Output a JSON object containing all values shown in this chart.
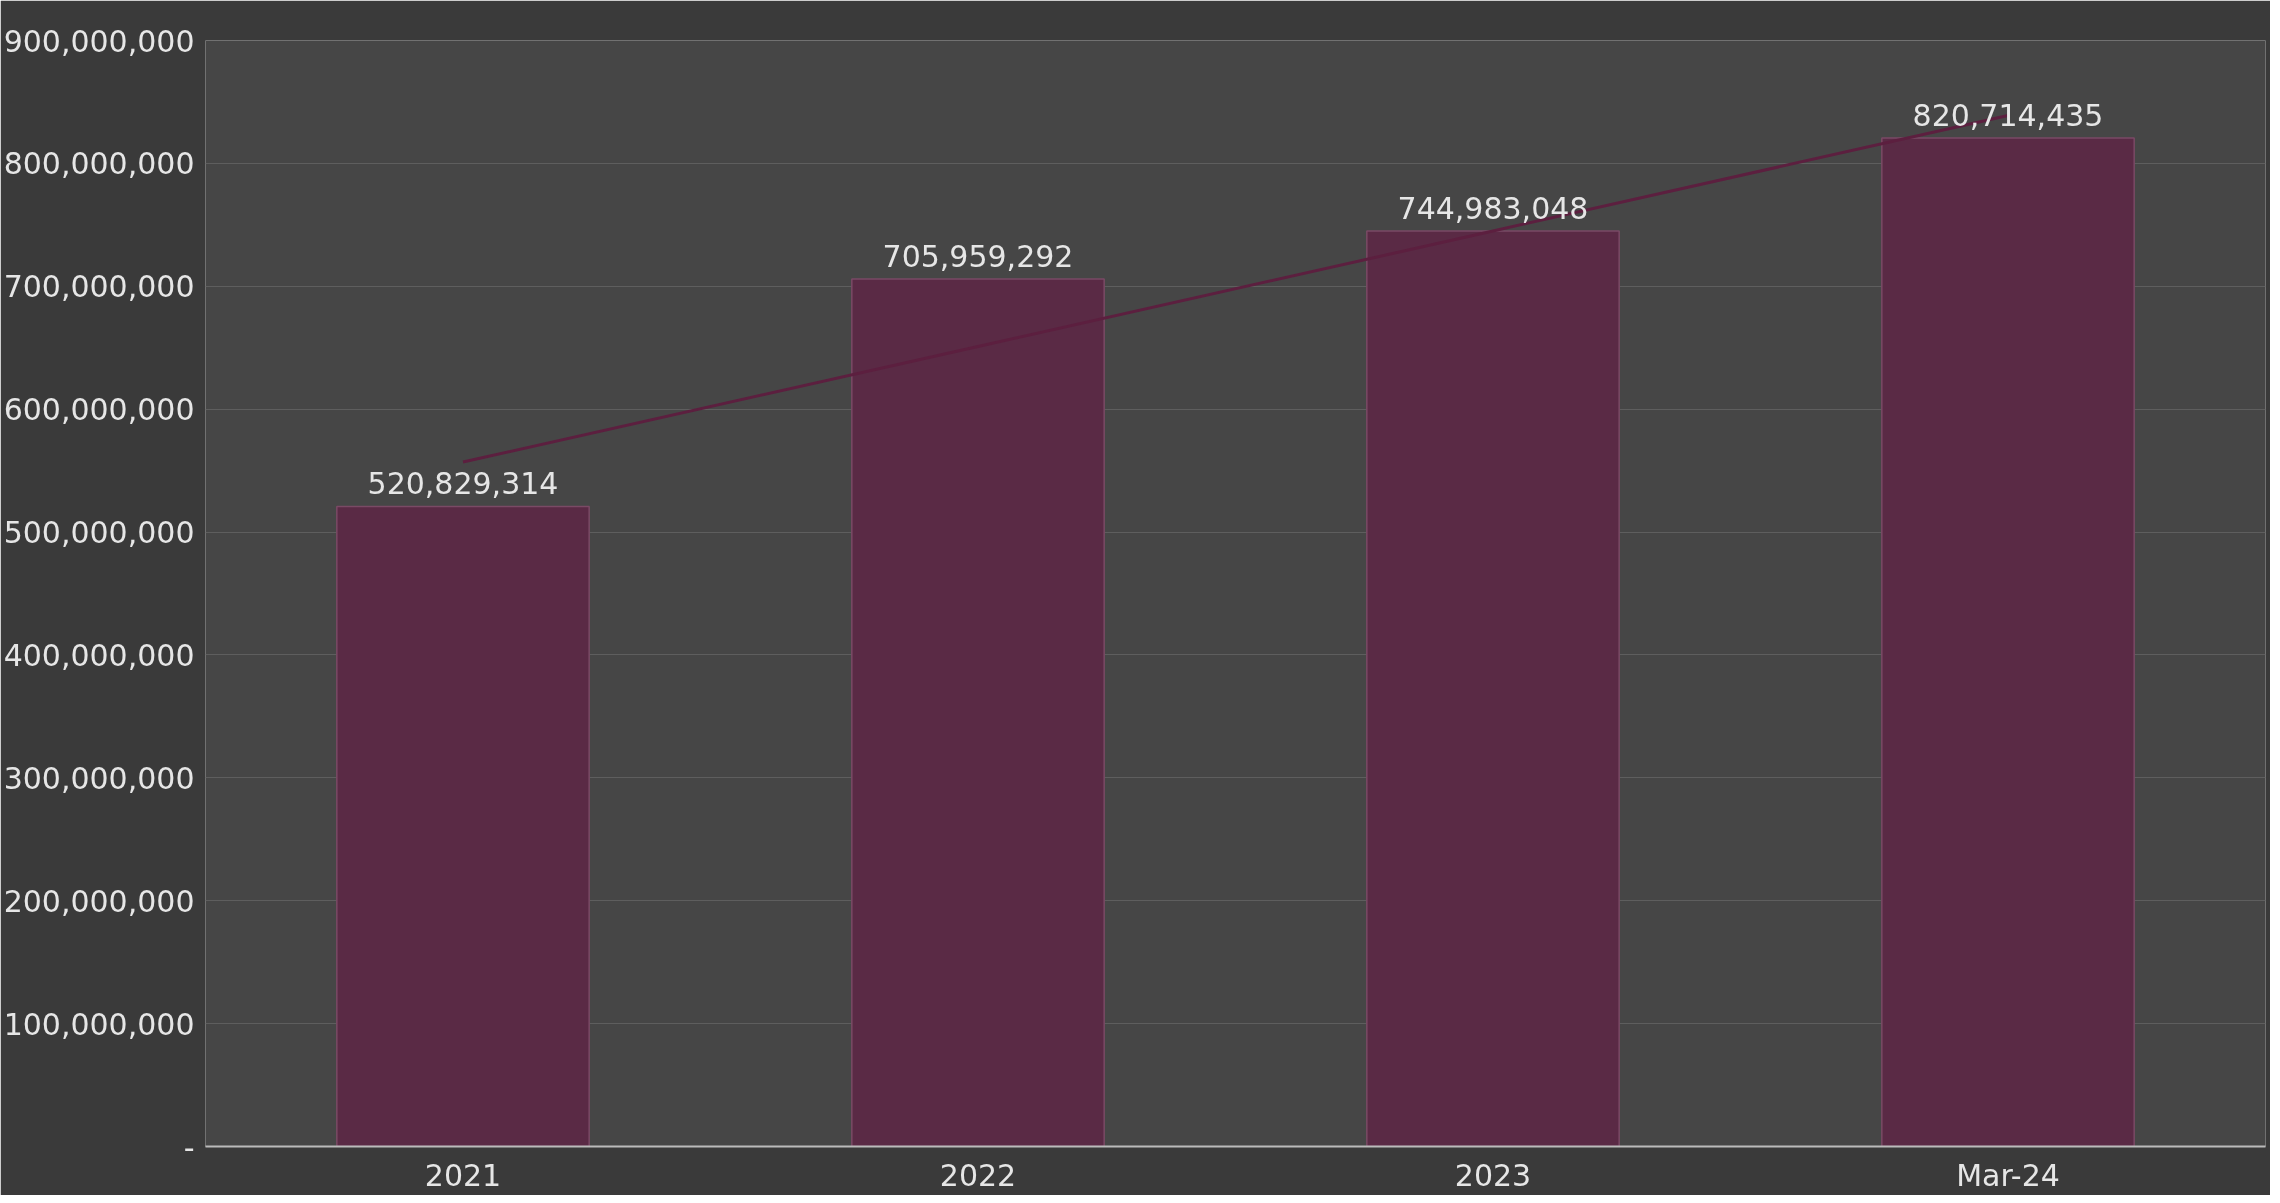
{
  "chart_data": {
    "type": "bar",
    "categories": [
      "2021",
      "2022",
      "2023",
      "Mar-24"
    ],
    "series": [
      {
        "color": "#5a2a45",
        "values": [
          520829314,
          705959292,
          744983048,
          820714435
        ],
        "value_labels": [
          "520,829,314",
          "705,959,292",
          "744,983,048",
          "820,714,435"
        ]
      },
      {
        "type": "line",
        "color": "#5c1f3f",
        "values": [
          557000000,
          651000000,
          745000000,
          839000000
        ]
      }
    ],
    "ylim": [
      0,
      900000000
    ],
    "yticks": [
      {
        "value": 0,
        "label": "-"
      },
      {
        "value": 100000000,
        "label": "100,000,000"
      },
      {
        "value": 200000000,
        "label": "200,000,000"
      },
      {
        "value": 300000000,
        "label": "300,000,000"
      },
      {
        "value": 400000000,
        "label": "400,000,000"
      },
      {
        "value": 500000000,
        "label": "500,000,000"
      },
      {
        "value": 600000000,
        "label": "600,000,000"
      },
      {
        "value": 700000000,
        "label": "700,000,000"
      },
      {
        "value": 800000000,
        "label": "800,000,000"
      },
      {
        "value": 900000000,
        "label": "900,000,000"
      }
    ],
    "grid": "y"
  }
}
